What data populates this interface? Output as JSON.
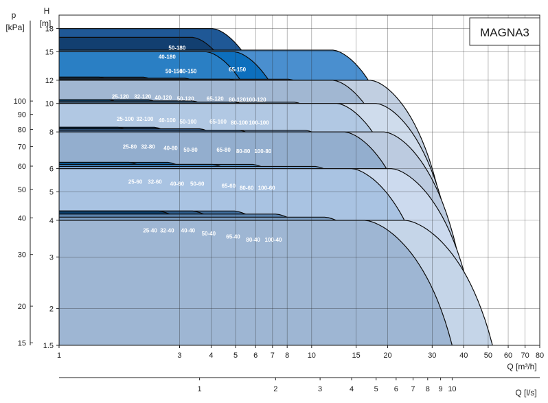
{
  "chart_data": {
    "type": "area",
    "title": "MAGNA3",
    "x_axis": {
      "label": "Q [m³/h]",
      "scale": "log",
      "range": [
        1,
        80
      ],
      "ticks": [
        "1",
        "3",
        "4",
        "5",
        "6",
        "7",
        "8",
        "10",
        "15",
        "20",
        "30",
        "40",
        "50",
        "60",
        "70",
        "80"
      ]
    },
    "x2_axis": {
      "label": "Q [l/s]",
      "ticks": [
        "1",
        "2",
        "3",
        "4",
        "5",
        "6",
        "7",
        "8",
        "9",
        "10"
      ]
    },
    "y_axis": {
      "label_top": "H",
      "label_unit": "[m]",
      "scale": "log",
      "range": [
        1.5,
        20
      ],
      "ticks": [
        "1.5",
        "2",
        "3",
        "4",
        "5",
        "6",
        "8",
        "10",
        "12",
        "15",
        "18"
      ]
    },
    "y2_axis": {
      "label_top": "p",
      "label_unit": "[kPa]",
      "ticks": [
        "15",
        "20",
        "30",
        "40",
        "50",
        "60",
        "70",
        "80",
        "90",
        "100"
      ]
    },
    "grid": true,
    "pumps": [
      {
        "name": "25-40",
        "qmax": 5.5,
        "hmax": 4.3,
        "color": "#0a3d6b"
      },
      {
        "name": "32-40",
        "qmax": 7.5,
        "hmax": 4.3,
        "color": "#2c5c8c"
      },
      {
        "name": "40-40",
        "qmax": 11,
        "hmax": 4.3,
        "color": "#3f6d9d"
      },
      {
        "name": "50-40",
        "qmax": 16,
        "hmax": 4.2,
        "color": "#5b82ad"
      },
      {
        "name": "65-40",
        "qmax": 25,
        "hmax": 4.1,
        "color": "#7b9cc1"
      },
      {
        "name": "80-40",
        "qmax": 36,
        "hmax": 4.0,
        "color": "#9eb6d3"
      },
      {
        "name": "100-40",
        "qmax": 52,
        "hmax": 4.0,
        "color": "#c5d5e8"
      },
      {
        "name": "25-60",
        "qmax": 4.2,
        "hmax": 6.3,
        "color": "#0d6aae"
      },
      {
        "name": "32-60",
        "qmax": 6,
        "hmax": 6.3,
        "color": "#1d73b8"
      },
      {
        "name": "40-60",
        "qmax": 9,
        "hmax": 6.2,
        "color": "#3d88c8"
      },
      {
        "name": "50-60",
        "qmax": 13,
        "hmax": 6.2,
        "color": "#5a98cf"
      },
      {
        "name": "65-60",
        "qmax": 23,
        "hmax": 6.1,
        "color": "#7ea9d7"
      },
      {
        "name": "80-60",
        "qmax": 32,
        "hmax": 6.0,
        "color": "#a9c3e2"
      },
      {
        "name": "100-60",
        "qmax": 46,
        "hmax": 6.0,
        "color": "#ccdaee"
      },
      {
        "name": "25-80",
        "qmax": 3.8,
        "hmax": 8.3,
        "color": "#063966"
      },
      {
        "name": "32-80",
        "qmax": 5.3,
        "hmax": 8.3,
        "color": "#1d4d80"
      },
      {
        "name": "40-80",
        "qmax": 8,
        "hmax": 8.2,
        "color": "#3a6699"
      },
      {
        "name": "50-80",
        "qmax": 11.5,
        "hmax": 8.1,
        "color": "#4f78a8"
      },
      {
        "name": "65-80",
        "qmax": 21,
        "hmax": 8.1,
        "color": "#7092bc"
      },
      {
        "name": "80-80",
        "qmax": 30,
        "hmax": 8.0,
        "color": "#93aece"
      },
      {
        "name": "100-80",
        "qmax": 43,
        "hmax": 8.0,
        "color": "#bccbe0"
      },
      {
        "name": "25-100",
        "qmax": 3.5,
        "hmax": 10.3,
        "color": "#0b74c0"
      },
      {
        "name": "32-100",
        "qmax": 5,
        "hmax": 10.3,
        "color": "#2a80c6"
      },
      {
        "name": "40-100",
        "qmax": 7.5,
        "hmax": 10.2,
        "color": "#4e90cc"
      },
      {
        "name": "50-100",
        "qmax": 11,
        "hmax": 10.1,
        "color": "#6ea2d3"
      },
      {
        "name": "65-100",
        "qmax": 19,
        "hmax": 10.1,
        "color": "#8fb3da"
      },
      {
        "name": "80-100",
        "qmax": 28,
        "hmax": 10.0,
        "color": "#b1c8e3"
      },
      {
        "name": "100-100",
        "qmax": 40,
        "hmax": 10.0,
        "color": "#cfdcec"
      },
      {
        "name": "25-120",
        "qmax": 3.2,
        "hmax": 12.3,
        "color": "#0f4f86"
      },
      {
        "name": "32-120",
        "qmax": 4.8,
        "hmax": 12.3,
        "color": "#255c91"
      },
      {
        "name": "40-120",
        "qmax": 7,
        "hmax": 12.2,
        "color": "#446fa0"
      },
      {
        "name": "50-120",
        "qmax": 10.5,
        "hmax": 12.1,
        "color": "#5f83af"
      },
      {
        "name": "65-120",
        "qmax": 18,
        "hmax": 12.1,
        "color": "#7d9bc0"
      },
      {
        "name": "80-120",
        "qmax": 27,
        "hmax": 12.0,
        "color": "#a1b7d2"
      },
      {
        "name": "100-120",
        "qmax": 38,
        "hmax": 12.0,
        "color": "#c1cfe1"
      },
      {
        "name": "50-150",
        "qmax": 8.5,
        "hmax": 15.0,
        "color": "#2a7fc4"
      },
      {
        "name": "40-150",
        "qmax": 11,
        "hmax": 15.0,
        "color": "#0d6fbd"
      },
      {
        "name": "65-150",
        "qmax": 27,
        "hmax": 15.2,
        "color": "#4a8fcf"
      },
      {
        "name": "50-180",
        "qmax": 9,
        "hmax": 18.0,
        "color": "#1f5896"
      },
      {
        "name": "40-180",
        "qmax": 7.5,
        "hmax": 16.8,
        "color": "#123f70"
      }
    ]
  }
}
